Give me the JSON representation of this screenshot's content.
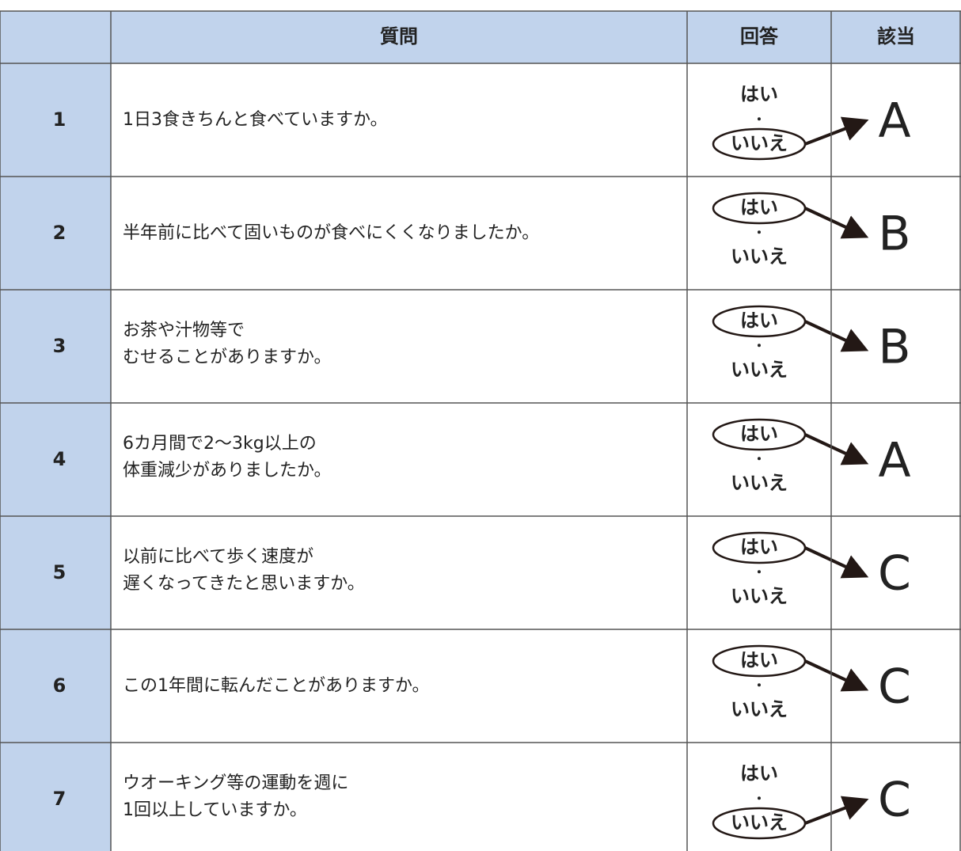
{
  "table": {
    "header": [
      "質問",
      "回答",
      "該当"
    ],
    "rows": [
      {
        "no": "1",
        "question": [
          "1日3食きちんと食べていますか。"
        ],
        "answers": [
          "はい",
          "・",
          "いいえ"
        ],
        "circled": 2,
        "result": "A"
      },
      {
        "no": "2",
        "question": [
          "半年前に比べて固いものが食べにくくなりましたか。"
        ],
        "answers": [
          "はい",
          "・",
          "いいえ"
        ],
        "circled": 0,
        "result": "B"
      },
      {
        "no": "3",
        "question": [
          "お茶や汁物等で",
          "むせることがありますか。"
        ],
        "answers": [
          "はい",
          "・",
          "いいえ"
        ],
        "circled": 0,
        "result": "B"
      },
      {
        "no": "4",
        "question": [
          "6カ月間で2〜3kg以上の",
          "体重減少がありましたか。"
        ],
        "answers": [
          "はい",
          "・",
          "いいえ"
        ],
        "circled": 0,
        "result": "A"
      },
      {
        "no": "5",
        "question": [
          "以前に比べて歩く速度が",
          "遅くなってきたと思いますか。"
        ],
        "answers": [
          "はい",
          "・",
          "いいえ"
        ],
        "circled": 0,
        "result": "C"
      },
      {
        "no": "6",
        "question": [
          "この1年間に転んだことがありますか。"
        ],
        "answers": [
          "はい",
          "・",
          "いいえ"
        ],
        "circled": 0,
        "result": "C"
      },
      {
        "no": "7",
        "question": [
          "ウオーキング等の運動を週に",
          "1回以上していますか。"
        ],
        "answers": [
          "はい",
          "・",
          "いいえ"
        ],
        "circled": 2,
        "result": "C"
      }
    ]
  }
}
